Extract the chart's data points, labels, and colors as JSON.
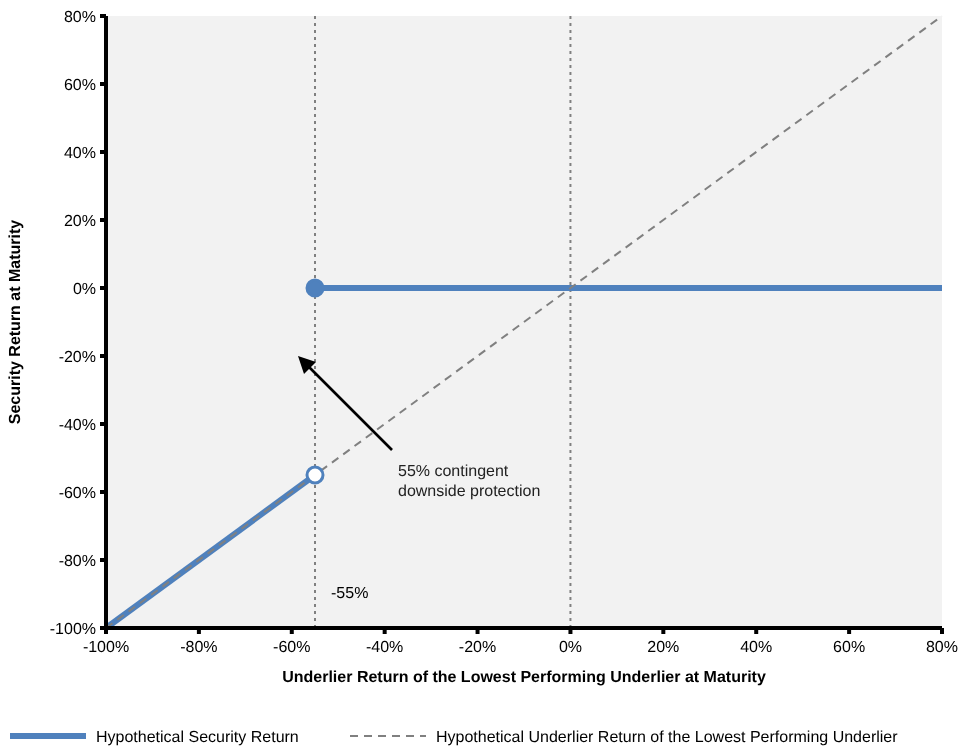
{
  "chart_data": {
    "type": "line",
    "xlabel": "Underlier Return of the Lowest Performing Underlier at Maturity",
    "ylabel": "Security Return at Maturity",
    "xlim": [
      -100,
      80
    ],
    "ylim": [
      -100,
      80
    ],
    "xticks": [
      {
        "value": -100,
        "label": "-100%"
      },
      {
        "value": -80,
        "label": "-80%"
      },
      {
        "value": -60,
        "label": "-60%"
      },
      {
        "value": -40,
        "label": "-40%"
      },
      {
        "value": -20,
        "label": "-20%"
      },
      {
        "value": 0,
        "label": "0%"
      },
      {
        "value": 20,
        "label": "20%"
      },
      {
        "value": 40,
        "label": "40%"
      },
      {
        "value": 60,
        "label": "60%"
      },
      {
        "value": 80,
        "label": "80%"
      }
    ],
    "yticks": [
      {
        "value": -100,
        "label": "-100%"
      },
      {
        "value": -80,
        "label": "-80%"
      },
      {
        "value": -60,
        "label": "-60%"
      },
      {
        "value": -40,
        "label": "-40%"
      },
      {
        "value": -20,
        "label": "-20%"
      },
      {
        "value": 0,
        "label": "0%"
      },
      {
        "value": 20,
        "label": "20%"
      },
      {
        "value": 40,
        "label": "40%"
      },
      {
        "value": 60,
        "label": "60%"
      },
      {
        "value": 80,
        "label": "80%"
      }
    ],
    "series": [
      {
        "name": "Hypothetical Security Return",
        "color": "#4f81bd",
        "x": [
          -100,
          -55
        ],
        "values": [
          -100,
          -55
        ]
      },
      {
        "color": "#4f81bd",
        "x": [
          -55,
          80
        ],
        "values": [
          0,
          0
        ]
      },
      {
        "name": "Hypothetical Underlier Return of the Lowest Performing Underlier",
        "color": "#808080",
        "line_style": "dashed",
        "x": [
          -100,
          80
        ],
        "values": [
          -100,
          80
        ]
      },
      {
        "type": "scatter",
        "color": "#4f81bd",
        "marker": "circle",
        "x": [
          -55,
          -55
        ],
        "values": [
          0,
          -55
        ],
        "colors": [
          "#4f81bd",
          "#ffffff"
        ]
      }
    ],
    "ref_lines": [
      {
        "axis": "x",
        "value": -55,
        "label": "-55%",
        "line_style": "dotted",
        "color": "#808080"
      },
      {
        "axis": "x",
        "value": 0,
        "line_style": "dotted",
        "color": "#808080"
      }
    ],
    "annotations": [
      "55% contingent downside protection"
    ],
    "grid": false,
    "legend": "bottom"
  }
}
